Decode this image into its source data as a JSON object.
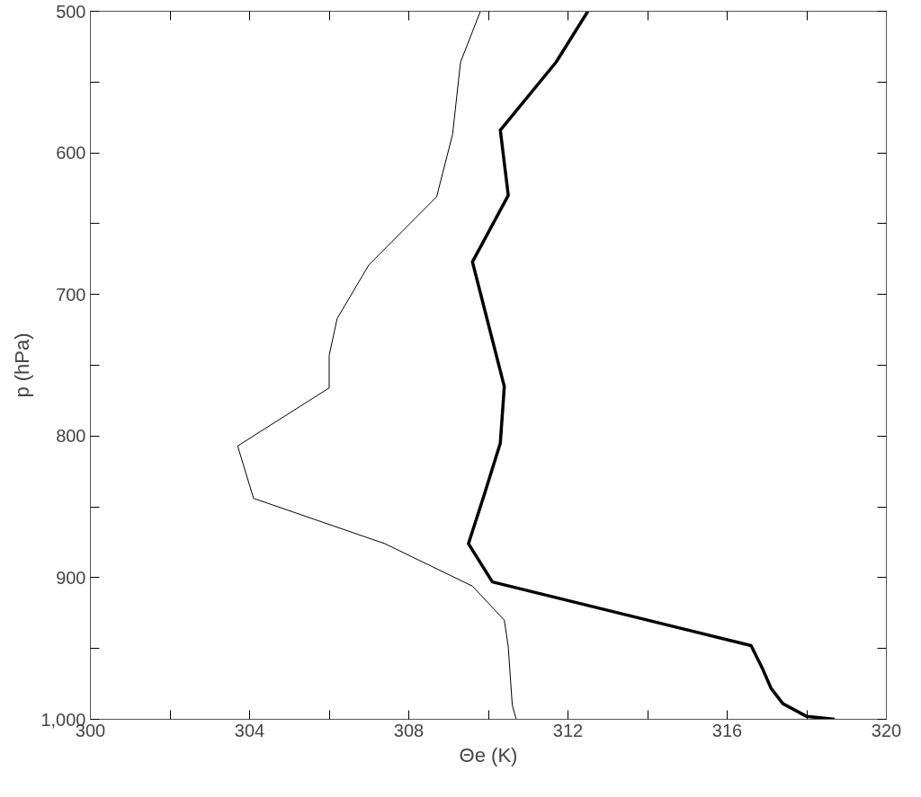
{
  "chart_data": {
    "type": "line",
    "xlabel": "Θe (K)",
    "ylabel": "p (hPa)",
    "xlim": [
      300,
      320
    ],
    "ylim": [
      1000,
      500
    ],
    "xticks": [
      300,
      {
        "value": 302,
        "label": null
      },
      304,
      {
        "value": 306,
        "label": null
      },
      308,
      {
        "value": 310,
        "label": null
      },
      312,
      {
        "value": 314,
        "label": null
      },
      316,
      {
        "value": 318,
        "label": null
      },
      320
    ],
    "yticks": [
      500,
      {
        "value": 550,
        "label": null
      },
      600,
      {
        "value": 650,
        "label": null
      },
      700,
      {
        "value": 750,
        "label": null
      },
      800,
      {
        "value": 850,
        "label": null
      },
      900,
      {
        "value": 950,
        "label": null
      },
      {
        "value": 1000,
        "label": "1,000"
      }
    ],
    "grid": false,
    "marker": "none",
    "line_style": "solid",
    "series": [
      {
        "color": "#000000",
        "x": [
          309.8,
          309.3,
          309.1,
          308.7,
          307.0,
          306.2,
          306.0,
          306.0,
          303.7,
          304.1,
          307.4,
          309.6,
          310.4,
          310.5,
          310.6,
          310.7
        ],
        "values": [
          500,
          536,
          587,
          631,
          679,
          717,
          743,
          766,
          807,
          844,
          876,
          906,
          930,
          949,
          990,
          1000
        ]
      },
      {
        "color": "#000000",
        "x": [
          312.5,
          311.7,
          310.3,
          310.5,
          309.6,
          310.4,
          310.3,
          309.9,
          309.5,
          310.1,
          316.6,
          316.9,
          317.1,
          317.4,
          318.0,
          318.7
        ],
        "values": [
          500,
          536,
          584,
          630,
          677,
          765,
          805,
          841,
          876,
          903,
          948,
          965,
          978,
          989,
          998,
          1000
        ]
      }
    ]
  }
}
